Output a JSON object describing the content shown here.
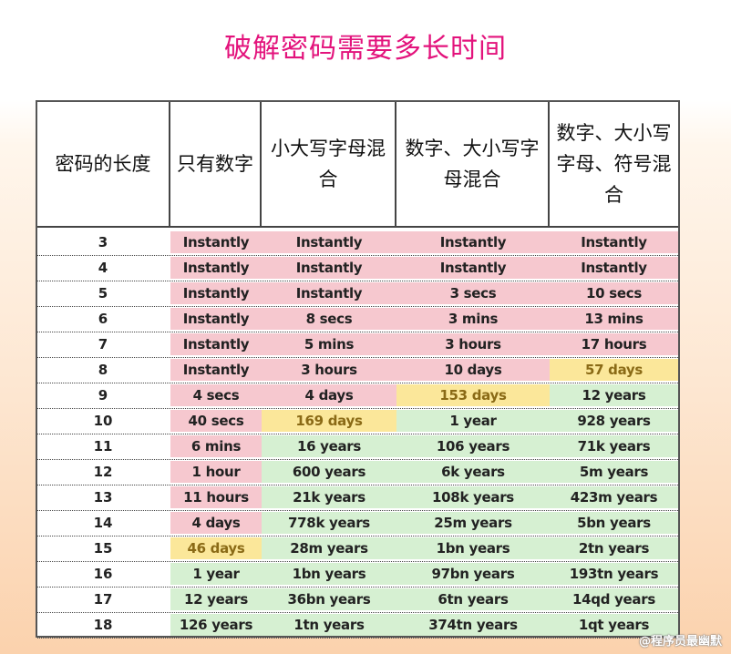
{
  "title": "破解密码需要多长时间",
  "watermark": "@程序员最幽默",
  "headers": [
    {
      "label": "密码的长度"
    },
    {
      "label": "只有数字"
    },
    {
      "label": "小大写字母混合"
    },
    {
      "label": "数字、大小写字母混合"
    },
    {
      "label": "数字、大小写字母、符号混合"
    }
  ],
  "status_colors": {
    "pink": "#f6c8cf",
    "yellow": "#fbe79a",
    "green": "#d6f0d2"
  },
  "rows": [
    {
      "length": "3",
      "cells": [
        {
          "text": "Instantly",
          "status": "pink"
        },
        {
          "text": "Instantly",
          "status": "pink"
        },
        {
          "text": "Instantly",
          "status": "pink"
        },
        {
          "text": "Instantly",
          "status": "pink"
        }
      ]
    },
    {
      "length": "4",
      "cells": [
        {
          "text": "Instantly",
          "status": "pink"
        },
        {
          "text": "Instantly",
          "status": "pink"
        },
        {
          "text": "Instantly",
          "status": "pink"
        },
        {
          "text": "Instantly",
          "status": "pink"
        }
      ]
    },
    {
      "length": "5",
      "cells": [
        {
          "text": "Instantly",
          "status": "pink"
        },
        {
          "text": "Instantly",
          "status": "pink"
        },
        {
          "text": "3 secs",
          "status": "pink"
        },
        {
          "text": "10 secs",
          "status": "pink"
        }
      ]
    },
    {
      "length": "6",
      "cells": [
        {
          "text": "Instantly",
          "status": "pink"
        },
        {
          "text": "8 secs",
          "status": "pink"
        },
        {
          "text": "3 mins",
          "status": "pink"
        },
        {
          "text": "13 mins",
          "status": "pink"
        }
      ]
    },
    {
      "length": "7",
      "cells": [
        {
          "text": "Instantly",
          "status": "pink"
        },
        {
          "text": "5 mins",
          "status": "pink"
        },
        {
          "text": "3 hours",
          "status": "pink"
        },
        {
          "text": "17 hours",
          "status": "pink"
        }
      ]
    },
    {
      "length": "8",
      "cells": [
        {
          "text": "Instantly",
          "status": "pink"
        },
        {
          "text": "3 hours",
          "status": "pink"
        },
        {
          "text": "10 days",
          "status": "pink"
        },
        {
          "text": "57 days",
          "status": "yellow"
        }
      ]
    },
    {
      "length": "9",
      "cells": [
        {
          "text": "4 secs",
          "status": "pink"
        },
        {
          "text": "4 days",
          "status": "pink"
        },
        {
          "text": "153 days",
          "status": "yellow"
        },
        {
          "text": "12 years",
          "status": "green"
        }
      ]
    },
    {
      "length": "10",
      "cells": [
        {
          "text": "40 secs",
          "status": "pink"
        },
        {
          "text": "169 days",
          "status": "yellow"
        },
        {
          "text": "1 year",
          "status": "green"
        },
        {
          "text": "928 years",
          "status": "green"
        }
      ]
    },
    {
      "length": "11",
      "cells": [
        {
          "text": "6 mins",
          "status": "pink"
        },
        {
          "text": "16 years",
          "status": "green"
        },
        {
          "text": "106 years",
          "status": "green"
        },
        {
          "text": "71k years",
          "status": "green"
        }
      ]
    },
    {
      "length": "12",
      "cells": [
        {
          "text": "1 hour",
          "status": "pink"
        },
        {
          "text": "600 years",
          "status": "green"
        },
        {
          "text": "6k years",
          "status": "green"
        },
        {
          "text": "5m years",
          "status": "green"
        }
      ]
    },
    {
      "length": "13",
      "cells": [
        {
          "text": "11 hours",
          "status": "pink"
        },
        {
          "text": "21k years",
          "status": "green"
        },
        {
          "text": "108k years",
          "status": "green"
        },
        {
          "text": "423m years",
          "status": "green"
        }
      ]
    },
    {
      "length": "14",
      "cells": [
        {
          "text": "4 days",
          "status": "pink"
        },
        {
          "text": "778k years",
          "status": "green"
        },
        {
          "text": "25m years",
          "status": "green"
        },
        {
          "text": "5bn years",
          "status": "green"
        }
      ]
    },
    {
      "length": "15",
      "cells": [
        {
          "text": "46 days",
          "status": "yellow"
        },
        {
          "text": "28m years",
          "status": "green"
        },
        {
          "text": "1bn years",
          "status": "green"
        },
        {
          "text": "2tn years",
          "status": "green"
        }
      ]
    },
    {
      "length": "16",
      "cells": [
        {
          "text": "1 year",
          "status": "green"
        },
        {
          "text": "1bn years",
          "status": "green"
        },
        {
          "text": "97bn years",
          "status": "green"
        },
        {
          "text": "193tn years",
          "status": "green"
        }
      ]
    },
    {
      "length": "17",
      "cells": [
        {
          "text": "12 years",
          "status": "green"
        },
        {
          "text": "36bn years",
          "status": "green"
        },
        {
          "text": "6tn years",
          "status": "green"
        },
        {
          "text": "14qd years",
          "status": "green"
        }
      ]
    },
    {
      "length": "18",
      "cells": [
        {
          "text": "126 years",
          "status": "green"
        },
        {
          "text": "1tn years",
          "status": "green"
        },
        {
          "text": "374tn years",
          "status": "green"
        },
        {
          "text": "1qt years",
          "status": "green"
        }
      ]
    }
  ]
}
